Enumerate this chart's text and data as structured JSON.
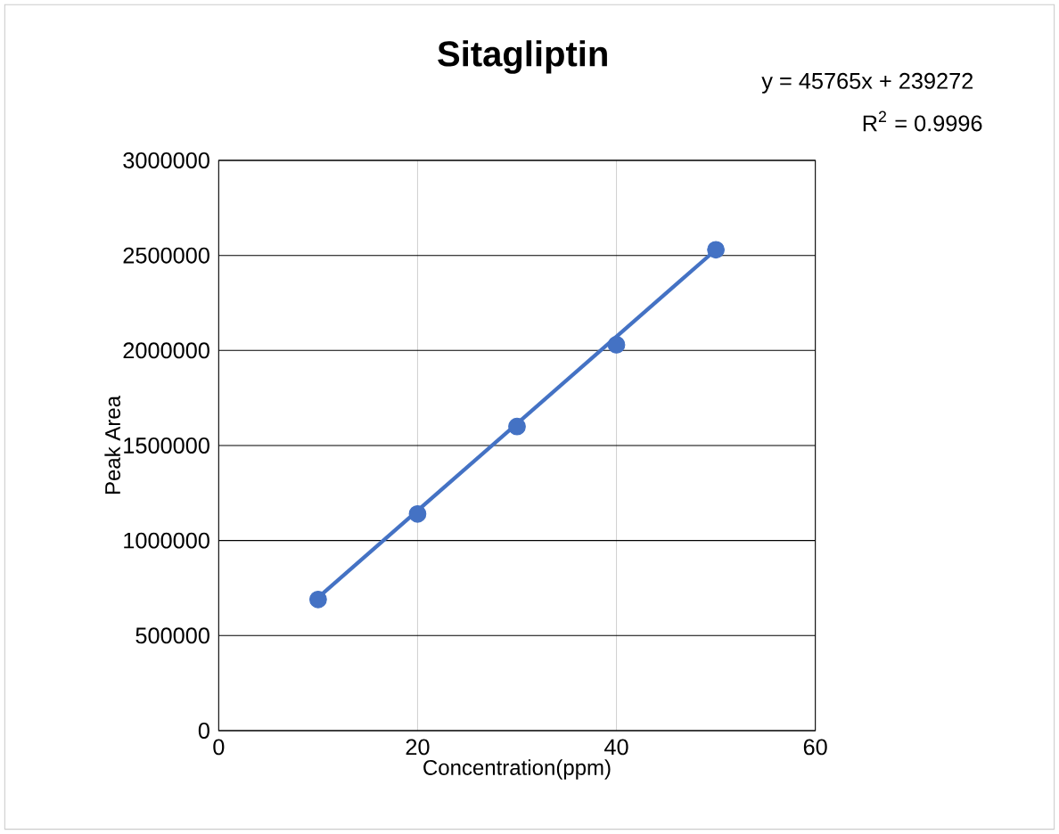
{
  "chart_data": {
    "type": "scatter",
    "title": "Sitagliptin",
    "xlabel": "Concentration(ppm)",
    "ylabel": "Peak Area",
    "annotations": [
      "y = 45765x + 239272",
      "R$^{2}$ = 0.9996"
    ],
    "series": [
      {
        "color": "#4472c4",
        "x": [
          10,
          20,
          30,
          40,
          50
        ],
        "values": [
          690000,
          1140000,
          1600000,
          2030000,
          2530000
        ],
        "marker": "circle"
      },
      {
        "type": "line",
        "color": "#4472c4",
        "x": [
          10,
          50
        ],
        "values": [
          700000,
          2530000
        ],
        "marker": "none"
      }
    ],
    "xlim": [
      0,
      60
    ],
    "xticks": [
      0,
      20,
      40,
      60
    ],
    "ylim": [
      0,
      3000000
    ],
    "yticks": [
      0,
      500000,
      1000000,
      1500000,
      2000000,
      2500000,
      3000000
    ],
    "grid": true
  }
}
